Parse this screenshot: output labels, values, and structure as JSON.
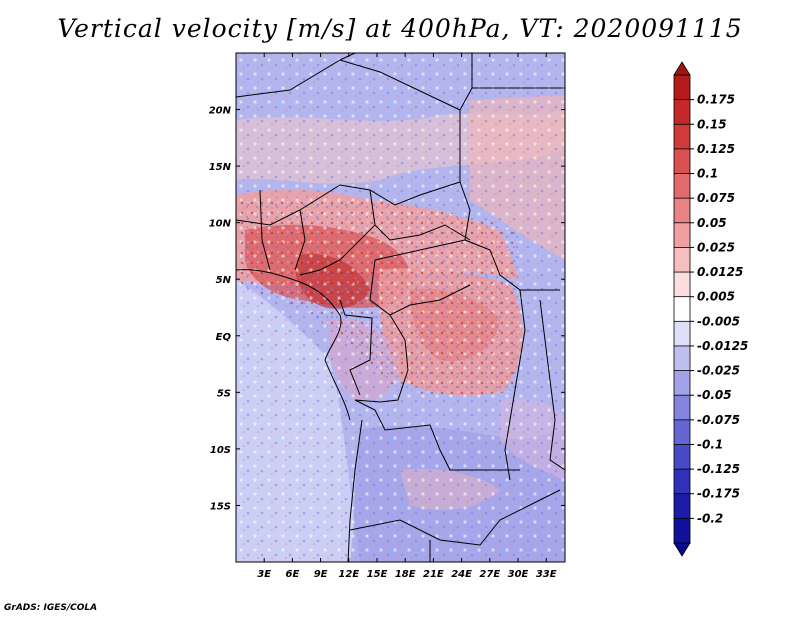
{
  "title": "Vertical velocity [m/s] at 400hPa, VT: 2020091115",
  "credit": "GrADS: IGES/COLA",
  "map": {
    "lon_ticks": [
      "3E",
      "6E",
      "9E",
      "12E",
      "15E",
      "18E",
      "21E",
      "24E",
      "27E",
      "30E",
      "33E"
    ],
    "lat_ticks": [
      "20N",
      "15N",
      "10N",
      "5N",
      "EQ",
      "5S",
      "10S",
      "15S"
    ],
    "lon_values": [
      3,
      6,
      9,
      12,
      15,
      18,
      21,
      24,
      27,
      30,
      33
    ],
    "lat_values": [
      20,
      15,
      10,
      5,
      0,
      -5,
      -10,
      -15
    ],
    "lon_range": [
      0,
      35
    ],
    "lat_range": [
      -20,
      25
    ]
  },
  "colorbar": {
    "labels": [
      "0.175",
      "0.15",
      "0.125",
      "0.1",
      "0.075",
      "0.05",
      "0.025",
      "0.0125",
      "0.005",
      "-0.005",
      "-0.0125",
      "-0.025",
      "-0.05",
      "-0.075",
      "-0.1",
      "-0.125",
      "-0.175",
      "-0.2"
    ],
    "colors": [
      "#b51a1a",
      "#c42828",
      "#cf3b3b",
      "#d95050",
      "#e26a6a",
      "#e98484",
      "#f0a0a0",
      "#f6bebe",
      "#fbdede",
      "#ffffff",
      "#dedef8",
      "#c0c0f0",
      "#a2a2e8",
      "#8484de",
      "#6666d2",
      "#4a4ac6",
      "#3030b8",
      "#1c1ca8",
      "#10109a"
    ]
  },
  "fields": {
    "base_color": "#b0b3ee",
    "icons": [
      "colorbar-up-arrow",
      "colorbar-down-arrow"
    ]
  }
}
